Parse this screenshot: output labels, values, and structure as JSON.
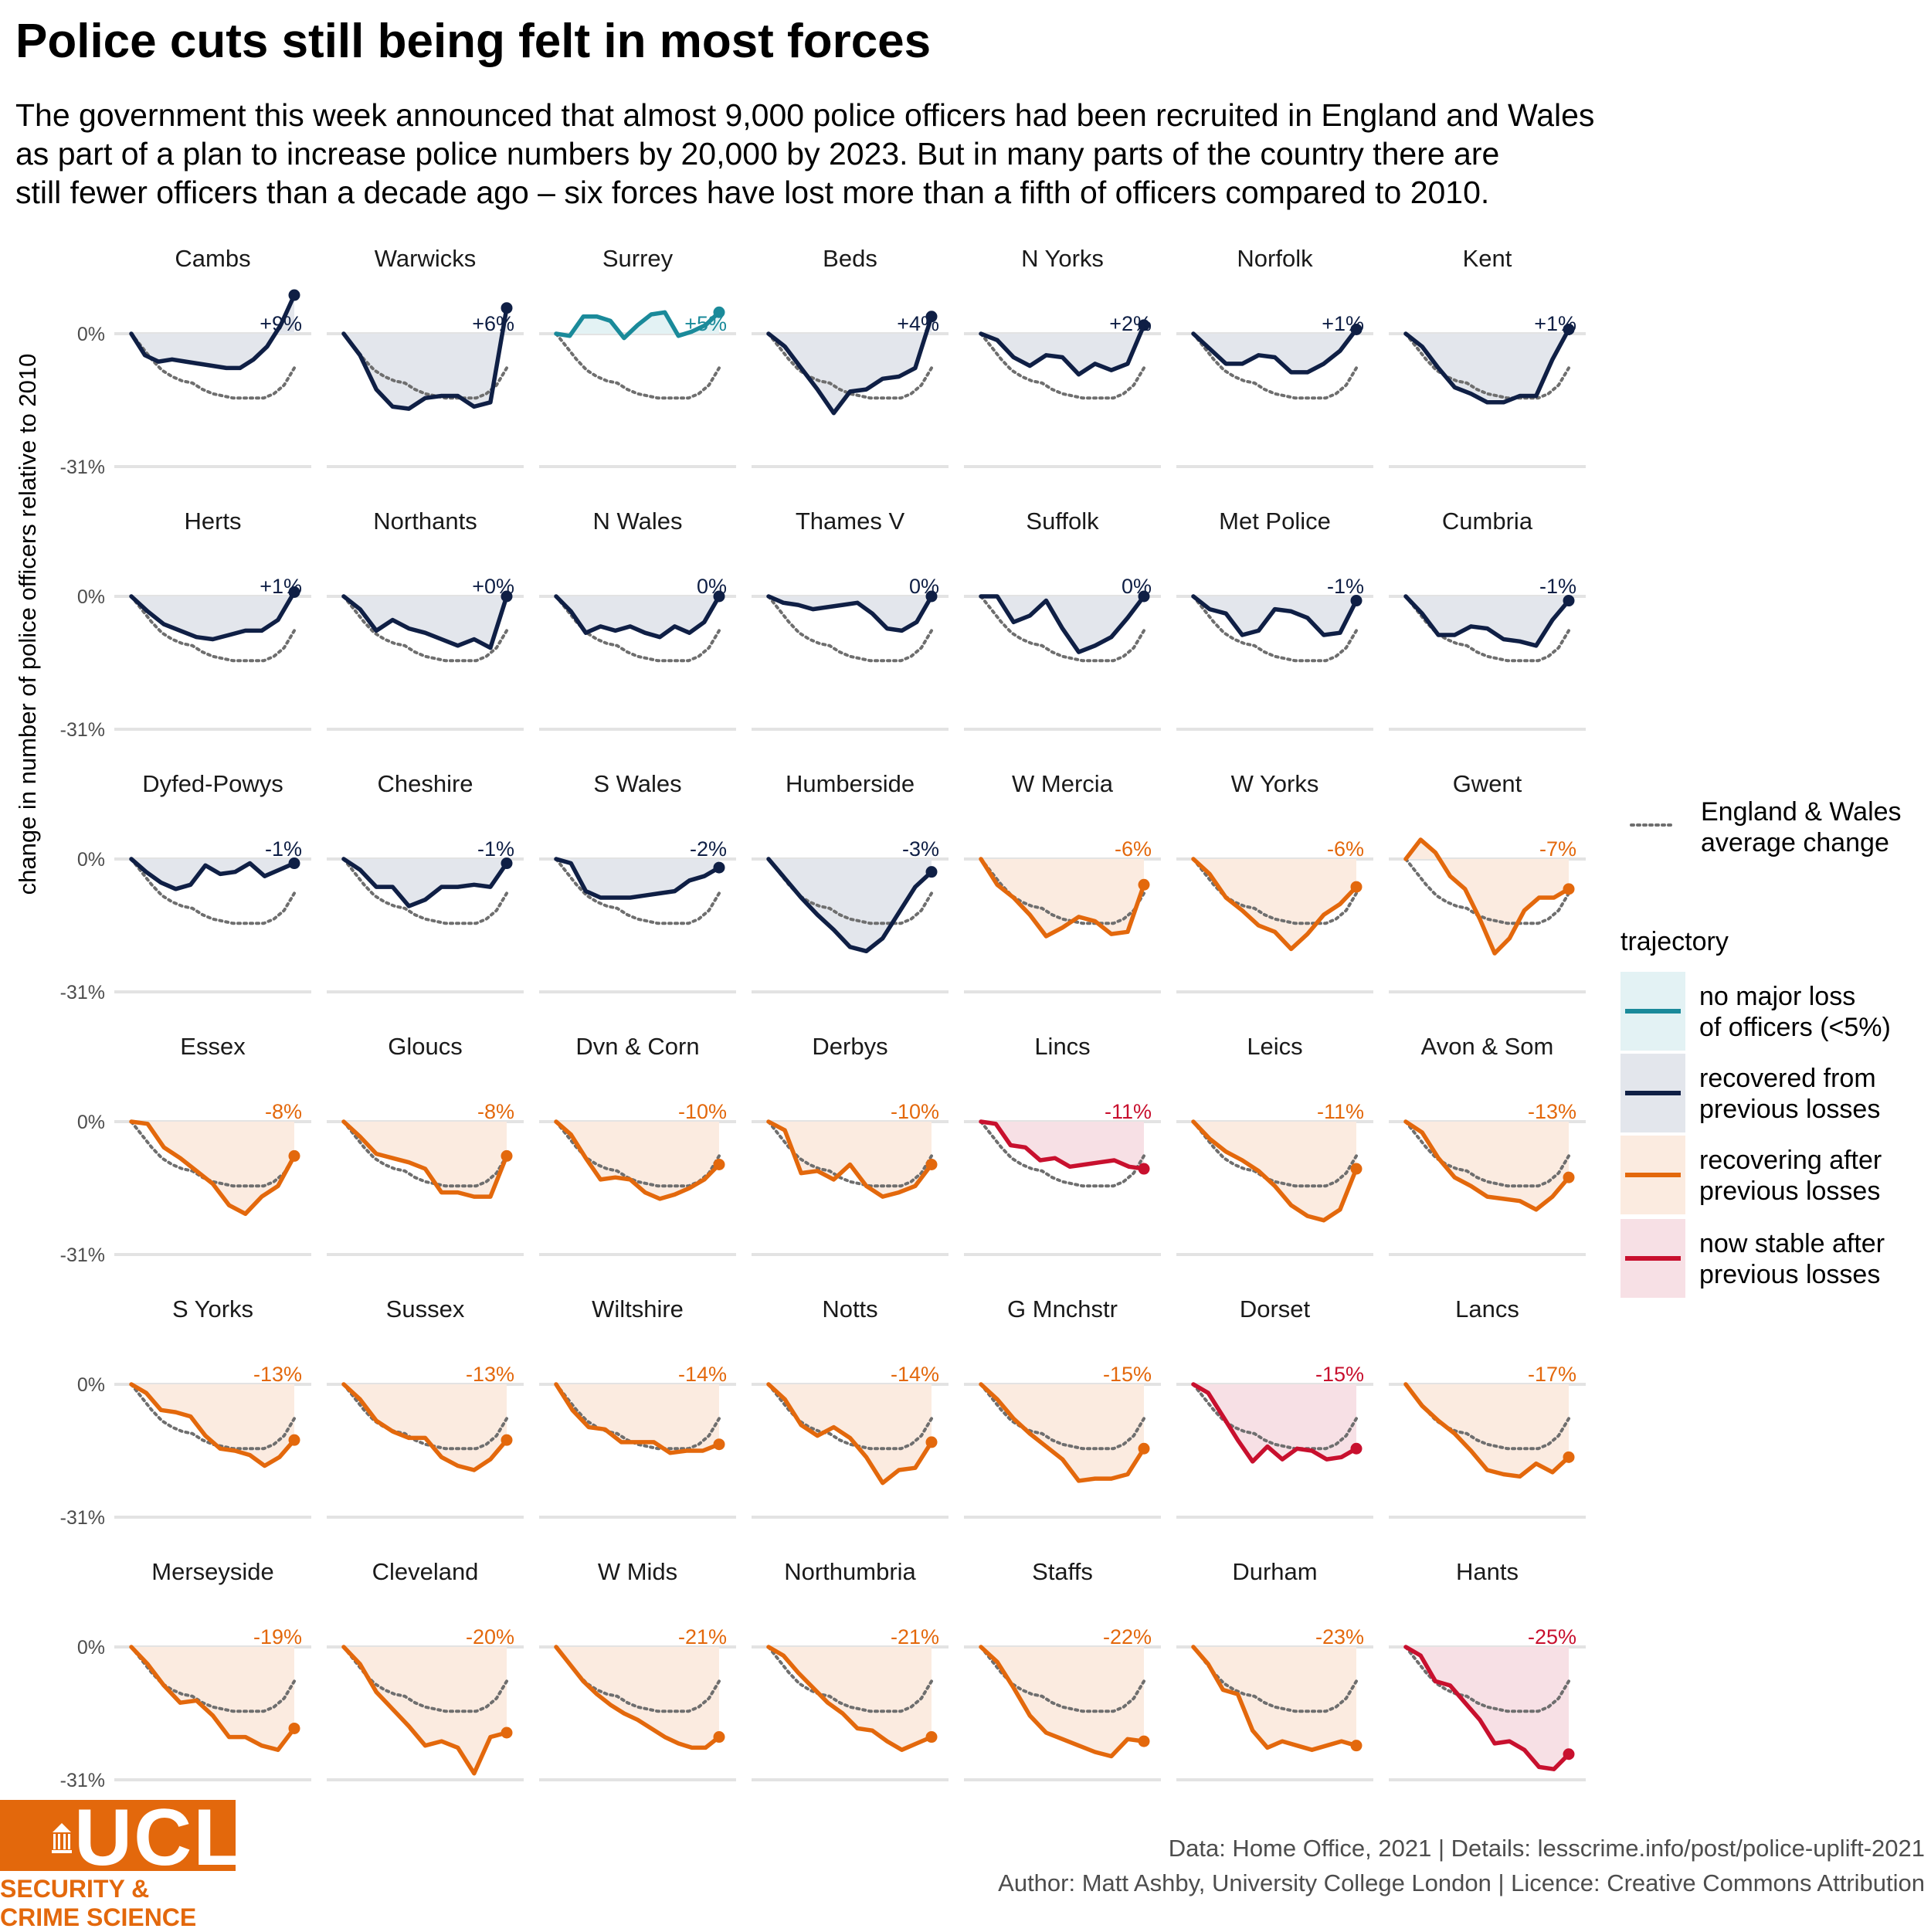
{
  "header": {
    "title": "Police cuts still being felt in most forces",
    "subtitle_lines": [
      "The government this week announced that almost 9,000 police officers had been recruited in England and Wales",
      "as part of a plan to increase police numbers by 20,000 by 2023. But in many parts of the country there are",
      "still fewer officers than a decade ago – six forces have lost more than a fifth of officers compared to 2010."
    ]
  },
  "footer": {
    "caption_line1": "Data: Home Office, 2021 |  Details: lesscrime.info/post/police-uplift-2021",
    "caption_line2": "Author: Matt Ashby, University College London |  Licence: Creative Commons Attribution"
  },
  "logo": {
    "wordmark": "UCL",
    "text_line1": "SECURITY &",
    "text_line2": "CRIME SCIENCE"
  },
  "chart_data": {
    "type": "line",
    "ylabel": "change in number of police officers relative to 2010",
    "yticks": [
      "0%",
      "-31%"
    ],
    "ylim": [
      -31,
      10
    ],
    "x_points": 17,
    "grid": "horizontal",
    "legend": {
      "position": "right",
      "average_label": [
        "England & Wales",
        "average change"
      ],
      "trajectory_title": "trajectory",
      "items": [
        {
          "key": "nomajor",
          "label": [
            "no major loss",
            "of officers (<5%)"
          ]
        },
        {
          "key": "recovered",
          "label": [
            "recovered from",
            "previous losses"
          ]
        },
        {
          "key": "recovering",
          "label": [
            "recovering after",
            "previous losses"
          ]
        },
        {
          "key": "stable",
          "label": [
            "now stable after",
            "previous losses"
          ]
        }
      ]
    },
    "colors": {
      "nomajor": {
        "line": "#1a8a9a",
        "fill": "#e3f2f4"
      },
      "recovered": {
        "line": "#0f1f45",
        "fill": "#e3e6ec"
      },
      "recovering": {
        "line": "#e3680c",
        "fill": "#fbebe0"
      },
      "stable": {
        "line": "#c8102e",
        "fill": "#f7e0e5"
      },
      "average": "#6e6e6e",
      "grid": "#e3e3e3"
    },
    "average": [
      0,
      -3,
      -6,
      -8.5,
      -10,
      -11,
      -11.5,
      -13,
      -14,
      -14.5,
      -15,
      -15,
      -15,
      -15,
      -14,
      -12,
      -8
    ],
    "forces": [
      {
        "name": "Cambs",
        "label": "+9%",
        "trajectory": "recovered",
        "values": [
          0,
          -5,
          -6.5,
          -6,
          -6.5,
          -7,
          -7.5,
          -8,
          -8,
          -6,
          -3,
          2,
          9
        ]
      },
      {
        "name": "Warwicks",
        "label": "+6%",
        "trajectory": "recovered",
        "values": [
          0,
          -5,
          -13,
          -17,
          -17.5,
          -15,
          -14.5,
          -14.5,
          -17,
          -16,
          6
        ]
      },
      {
        "name": "Surrey",
        "label": "+5%",
        "trajectory": "nomajor",
        "values": [
          0,
          -0.5,
          4,
          4,
          3,
          -1,
          2,
          4.5,
          5,
          -0.5,
          0.5,
          2,
          5
        ]
      },
      {
        "name": "Beds",
        "label": "+4%",
        "trajectory": "recovered",
        "values": [
          0,
          -3,
          -8,
          -13,
          -18.5,
          -13.5,
          -13,
          -10.5,
          -10,
          -8,
          4
        ]
      },
      {
        "name": "N Yorks",
        "label": "+2%",
        "trajectory": "recovered",
        "values": [
          0,
          -1.5,
          -5.5,
          -7.5,
          -5,
          -5.5,
          -9.5,
          -7,
          -8.5,
          -7,
          2
        ]
      },
      {
        "name": "Norfolk",
        "label": "+1%",
        "trajectory": "recovered",
        "values": [
          0,
          -3.5,
          -7,
          -7,
          -5,
          -5.5,
          -9,
          -9,
          -7,
          -4,
          1
        ]
      },
      {
        "name": "Kent",
        "label": "+1%",
        "trajectory": "recovered",
        "values": [
          0,
          -3,
          -8,
          -12.5,
          -14,
          -16,
          -16,
          -14.5,
          -14.5,
          -6,
          1
        ]
      },
      {
        "name": "Herts",
        "label": "+1%",
        "trajectory": "recovered",
        "values": [
          0,
          -3.5,
          -6.5,
          -8,
          -9.5,
          -10,
          -9,
          -8,
          -8,
          -5.5,
          1
        ]
      },
      {
        "name": "Northants",
        "label": "+0%",
        "trajectory": "recovered",
        "values": [
          0,
          -3,
          -8,
          -5.5,
          -7.5,
          -8.5,
          -10,
          -11.5,
          -10,
          -12,
          0
        ]
      },
      {
        "name": "N Wales",
        "label": "0%",
        "trajectory": "recovered",
        "values": [
          0,
          -3.5,
          -8.5,
          -7,
          -8,
          -7,
          -8.5,
          -9.5,
          -7,
          -8.5,
          -6,
          0
        ]
      },
      {
        "name": "Thames V",
        "label": "0%",
        "trajectory": "recovered",
        "values": [
          0,
          -1.5,
          -2,
          -3,
          -2.5,
          -2,
          -1.5,
          -4,
          -7.5,
          -8,
          -6,
          0
        ]
      },
      {
        "name": "Suffolk",
        "label": "0%",
        "trajectory": "recovered",
        "values": [
          0,
          0,
          -6,
          -4.5,
          -1,
          -7.5,
          -13,
          -11.5,
          -9.5,
          -5,
          0
        ]
      },
      {
        "name": "Met Police",
        "label": "-1%",
        "trajectory": "recovered",
        "values": [
          0,
          -3,
          -4,
          -9,
          -8,
          -3,
          -3.5,
          -5,
          -9,
          -8.5,
          -1
        ]
      },
      {
        "name": "Cumbria",
        "label": "-1%",
        "trajectory": "recovered",
        "values": [
          0,
          -4,
          -9,
          -9,
          -7,
          -7.5,
          -10,
          -10.5,
          -11.5,
          -5.5,
          -1
        ]
      },
      {
        "name": "Dyfed-Powys",
        "label": "-1%",
        "trajectory": "recovered",
        "values": [
          0,
          -3,
          -5.5,
          -7,
          -6,
          -1.5,
          -3.5,
          -3,
          -1,
          -4,
          -2.5,
          -1
        ]
      },
      {
        "name": "Cheshire",
        "label": "-1%",
        "trajectory": "recovered",
        "values": [
          0,
          -2.5,
          -6.5,
          -6.5,
          -11,
          -9.5,
          -6.5,
          -6.5,
          -6,
          -6.5,
          -1
        ]
      },
      {
        "name": "S Wales",
        "label": "-2%",
        "trajectory": "recovered",
        "values": [
          0,
          -1,
          -7.5,
          -9,
          -9,
          -9,
          -8.5,
          -8,
          -7.5,
          -5,
          -4,
          -2
        ]
      },
      {
        "name": "Humberside",
        "label": "-3%",
        "trajectory": "recovered",
        "values": [
          0,
          -4.5,
          -9,
          -13,
          -16.5,
          -20.5,
          -21.5,
          -18.5,
          -12.5,
          -6.5,
          -3
        ]
      },
      {
        "name": "W Mercia",
        "label": "-6%",
        "trajectory": "recovering",
        "values": [
          0,
          -6,
          -9,
          -13,
          -18,
          -16,
          -13.5,
          -14.5,
          -17.5,
          -17,
          -6
        ]
      },
      {
        "name": "W Yorks",
        "label": "-6%",
        "trajectory": "recovering",
        "values": [
          0,
          -3.5,
          -9,
          -12,
          -15.5,
          -17,
          -21,
          -17.5,
          -13,
          -10.5,
          -6.5
        ]
      },
      {
        "name": "Gwent",
        "label": "-7%",
        "trajectory": "recovering",
        "values": [
          0,
          4.5,
          1.5,
          -4,
          -7,
          -14,
          -22,
          -18.5,
          -12,
          -9,
          -9,
          -7
        ]
      },
      {
        "name": "Essex",
        "label": "-8%",
        "trajectory": "recovering",
        "values": [
          0,
          -0.5,
          -6,
          -8.5,
          -11.5,
          -14.5,
          -19.5,
          -21.5,
          -17.5,
          -15,
          -8
        ]
      },
      {
        "name": "Gloucs",
        "label": "-8%",
        "trajectory": "recovering",
        "values": [
          0,
          -3.5,
          -7.5,
          -8.5,
          -9.5,
          -11,
          -16.5,
          -16.5,
          -17.5,
          -17.5,
          -8
        ]
      },
      {
        "name": "Dvn & Corn",
        "label": "-10%",
        "trajectory": "recovering",
        "values": [
          0,
          -3,
          -8.5,
          -13.5,
          -13,
          -13.5,
          -16.5,
          -18,
          -17,
          -15.5,
          -13.5,
          -10
        ]
      },
      {
        "name": "Derbys",
        "label": "-10%",
        "trajectory": "recovering",
        "values": [
          0,
          -2,
          -12,
          -11.5,
          -13.5,
          -10,
          -15,
          -17.5,
          -16.5,
          -15,
          -10
        ]
      },
      {
        "name": "Lincs",
        "label": "-11%",
        "trajectory": "stable",
        "values": [
          0,
          -0.5,
          -5.5,
          -6,
          -9,
          -8.5,
          -10.5,
          -10,
          -9.5,
          -9,
          -10.5,
          -11
        ]
      },
      {
        "name": "Leics",
        "label": "-11%",
        "trajectory": "recovering",
        "values": [
          0,
          -4,
          -7,
          -9,
          -11.5,
          -15,
          -19.5,
          -22,
          -23,
          -20.5,
          -11
        ]
      },
      {
        "name": "Avon & Som",
        "label": "-13%",
        "trajectory": "recovering",
        "values": [
          0,
          -2.5,
          -8.5,
          -13,
          -15,
          -17.5,
          -18,
          -18.5,
          -20.5,
          -17.5,
          -13
        ]
      },
      {
        "name": "S Yorks",
        "label": "-13%",
        "trajectory": "recovering",
        "values": [
          0,
          -2,
          -6,
          -6.5,
          -7.5,
          -12,
          -15,
          -15.5,
          -16.5,
          -19,
          -17,
          -13
        ]
      },
      {
        "name": "Sussex",
        "label": "-13%",
        "trajectory": "recovering",
        "values": [
          0,
          -3.5,
          -8.5,
          -11,
          -12.5,
          -12.5,
          -17,
          -19,
          -20,
          -17.5,
          -13
        ]
      },
      {
        "name": "Wiltshire",
        "label": "-14%",
        "trajectory": "recovering",
        "values": [
          0,
          -6,
          -10,
          -10.5,
          -13.5,
          -13.5,
          -13.5,
          -16,
          -15.5,
          -15.5,
          -14
        ]
      },
      {
        "name": "Notts",
        "label": "-14%",
        "trajectory": "recovering",
        "values": [
          0,
          -3.5,
          -9.5,
          -12,
          -10,
          -12.5,
          -17,
          -23,
          -20,
          -19.5,
          -13.5
        ]
      },
      {
        "name": "G Mnchstr",
        "label": "-15%",
        "trajectory": "recovering",
        "values": [
          0,
          -3.5,
          -8,
          -11.5,
          -14.5,
          -17.5,
          -22.5,
          -22,
          -22,
          -21,
          -15
        ]
      },
      {
        "name": "Dorset",
        "label": "-15%",
        "trajectory": "stable",
        "values": [
          0,
          -2,
          -7.5,
          -13,
          -18,
          -14.5,
          -17.5,
          -15,
          -15.5,
          -17.5,
          -17,
          -15
        ]
      },
      {
        "name": "Lancs",
        "label": "-17%",
        "trajectory": "recovering",
        "values": [
          0,
          -5,
          -8.5,
          -11.5,
          -15.5,
          -20,
          -21,
          -21.5,
          -18.5,
          -20.5,
          -17
        ]
      },
      {
        "name": "Merseyside",
        "label": "-19%",
        "trajectory": "recovering",
        "values": [
          0,
          -4,
          -9,
          -13,
          -12.5,
          -16,
          -21,
          -21,
          -23,
          -24,
          -19
        ]
      },
      {
        "name": "Cleveland",
        "label": "-20%",
        "trajectory": "recovering",
        "values": [
          0,
          -4,
          -10.5,
          -14.5,
          -18.5,
          -23,
          -22,
          -23.5,
          -29.5,
          -21,
          -20
        ]
      },
      {
        "name": "W Mids",
        "label": "-21%",
        "trajectory": "recovering",
        "values": [
          0,
          -4,
          -8,
          -11,
          -13.5,
          -15.5,
          -17,
          -19,
          -21,
          -22.5,
          -23.5,
          -23.5,
          -21
        ]
      },
      {
        "name": "Northumbria",
        "label": "-21%",
        "trajectory": "recovering",
        "values": [
          0,
          -2,
          -6,
          -9.5,
          -13,
          -15.5,
          -19,
          -19.5,
          -22,
          -24,
          -22.5,
          -21
        ]
      },
      {
        "name": "Staffs",
        "label": "-22%",
        "trajectory": "recovering",
        "values": [
          0,
          -3.5,
          -9.5,
          -16,
          -20,
          -21.5,
          -23,
          -24.5,
          -25.5,
          -21.5,
          -22
        ]
      },
      {
        "name": "Durham",
        "label": "-23%",
        "trajectory": "recovering",
        "values": [
          0,
          -4,
          -10,
          -11,
          -19.5,
          -23.5,
          -22,
          -23,
          -24,
          -23,
          -22,
          -23
        ]
      },
      {
        "name": "Hants",
        "label": "-25%",
        "trajectory": "stable",
        "values": [
          0,
          -2,
          -8,
          -9,
          -13,
          -17,
          -22.5,
          -22,
          -24,
          -28,
          -28.5,
          -25
        ]
      }
    ]
  }
}
